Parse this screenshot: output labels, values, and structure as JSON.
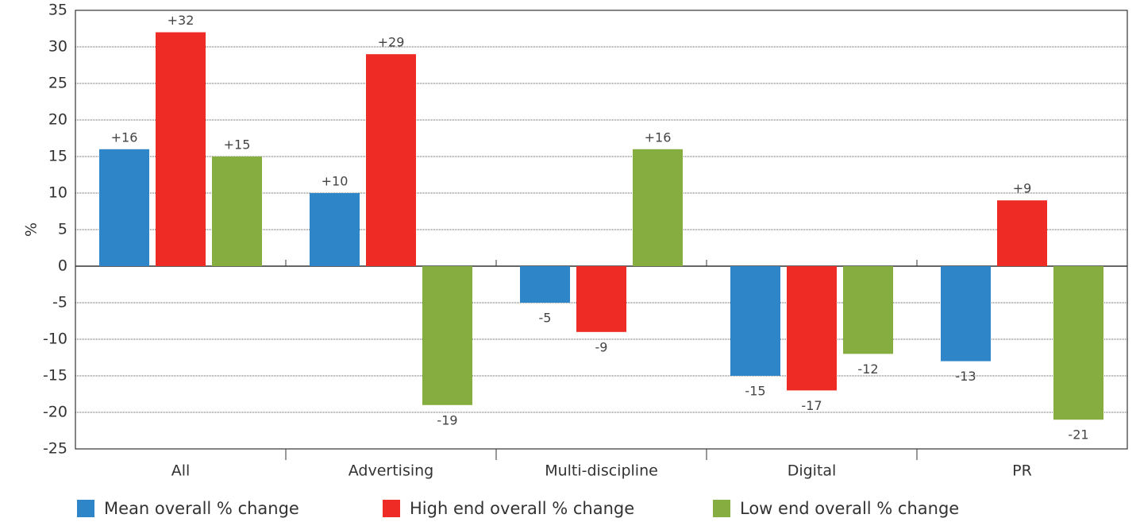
{
  "chart_data": {
    "type": "bar",
    "ylabel": "%",
    "categories": [
      "All",
      "Advertising",
      "Multi-discipline",
      "Digital",
      "PR"
    ],
    "series": [
      {
        "name": "Mean overall % change",
        "color": "#2e86c8",
        "values": [
          16,
          10,
          -5,
          -15,
          -13
        ],
        "value_labels": [
          "+16",
          "+10",
          "-5",
          "-15",
          "-13"
        ]
      },
      {
        "name": "High end overall % change",
        "color": "#ee2b24",
        "values": [
          32,
          29,
          -9,
          -17,
          9
        ],
        "value_labels": [
          "+32",
          "+29",
          "-9",
          "-17",
          "+9"
        ]
      },
      {
        "name": "Low end overall % change",
        "color": "#86ad3f",
        "values": [
          15,
          -19,
          16,
          -12,
          -21
        ],
        "value_labels": [
          "+15",
          "-19",
          "+16",
          "-12",
          "-21"
        ]
      }
    ],
    "ylim": [
      -25,
      35
    ],
    "yticks": [
      -25,
      -20,
      -15,
      -10,
      -5,
      0,
      5,
      10,
      15,
      20,
      25,
      30,
      35
    ],
    "grid": true
  }
}
